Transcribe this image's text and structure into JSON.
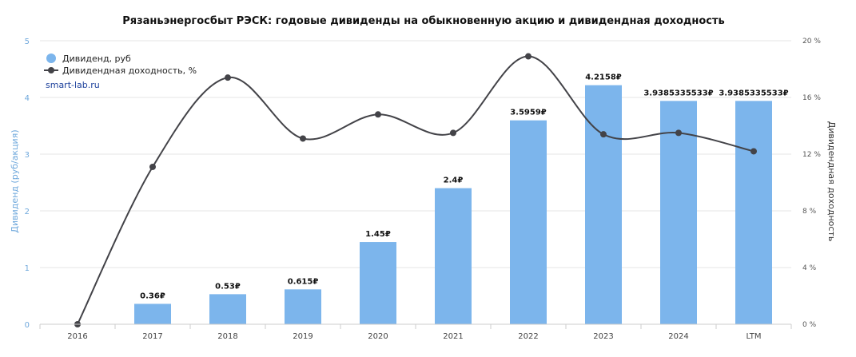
{
  "chart_data": {
    "type": "bar",
    "title": "Рязаньэнергосбыт РЭСК: годовые дивиденды на обыкновенную акцию и дивидендная доходность",
    "categories": [
      "2016",
      "2017",
      "2018",
      "2019",
      "2020",
      "2021",
      "2022",
      "2023",
      "2024",
      "LTM"
    ],
    "series": [
      {
        "name": "Дивиденд, руб",
        "type": "bar",
        "axis": "left",
        "color": "#7cb5ec",
        "values": [
          0,
          0.36,
          0.53,
          0.615,
          1.45,
          2.4,
          3.5959,
          4.2158,
          3.9385335533,
          3.9385335533
        ],
        "labels": [
          "",
          "0.36₽",
          "0.53₽",
          "0.615₽",
          "1.45₽",
          "2.4₽",
          "3.5959₽",
          "4.2158₽",
          "3.9385335533₽",
          "3.9385335533₽"
        ]
      },
      {
        "name": "Дивидендная доходность, %",
        "type": "line",
        "axis": "right",
        "color": "#434348",
        "values": [
          0,
          11.1,
          17.4,
          13.1,
          14.8,
          13.5,
          18.9,
          13.4,
          13.5,
          12.2
        ]
      }
    ],
    "ylabel": "Дивиденд (руб/акция)",
    "ylim": [
      0,
      5
    ],
    "yticks": [
      "0",
      "1",
      "2",
      "3",
      "4",
      "5"
    ],
    "y2label": "Дивидендная доходность",
    "y2lim": [
      0,
      20
    ],
    "y2ticks": [
      "0 %",
      "4 %",
      "8 %",
      "12 %",
      "16 %",
      "20 %"
    ],
    "grid": true,
    "legend_position": "top-left",
    "watermark": "smart-lab.ru"
  }
}
